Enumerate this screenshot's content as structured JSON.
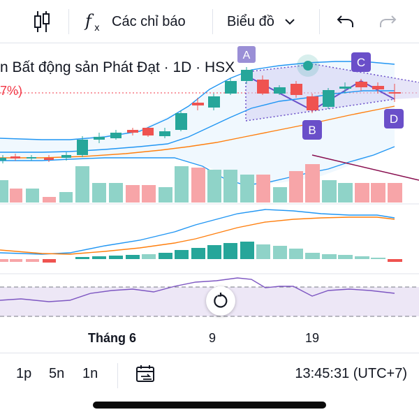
{
  "toolbar": {
    "indicators_label": "Các chỉ báo",
    "chart_type_label": "Biểu đồ",
    "icons": [
      "candlestick-icon",
      "fx-icon",
      "chevron-down-icon",
      "undo-icon",
      "redo-icon"
    ]
  },
  "chart": {
    "title": "n Bất động sản Phát Đạt · 1D · HSX",
    "pct_text": "7%)",
    "pattern_labels": {
      "a": "A",
      "b": "B",
      "c": "C",
      "d": "D"
    },
    "colors": {
      "up": "#26a69a",
      "down": "#ef5350",
      "volume_up": "#8fd3c8",
      "volume_down": "#f7a5a8",
      "ma_blue": "#2196f3",
      "ma_orange": "#ff7f0e",
      "pattern_label_bg": "#6a4fc9",
      "pattern_fill": "#d4cff2",
      "rsi_line": "#7e57c2",
      "rsi_band": "#ede7f6"
    }
  },
  "time_axis": {
    "labels": [
      "Tháng 6",
      "9",
      "19"
    ]
  },
  "bottom_bar": {
    "ranges": [
      "1p",
      "5n",
      "1n"
    ],
    "clock": "13:45:31 (UTC+7)",
    "icons": [
      "date-range-icon"
    ]
  }
}
